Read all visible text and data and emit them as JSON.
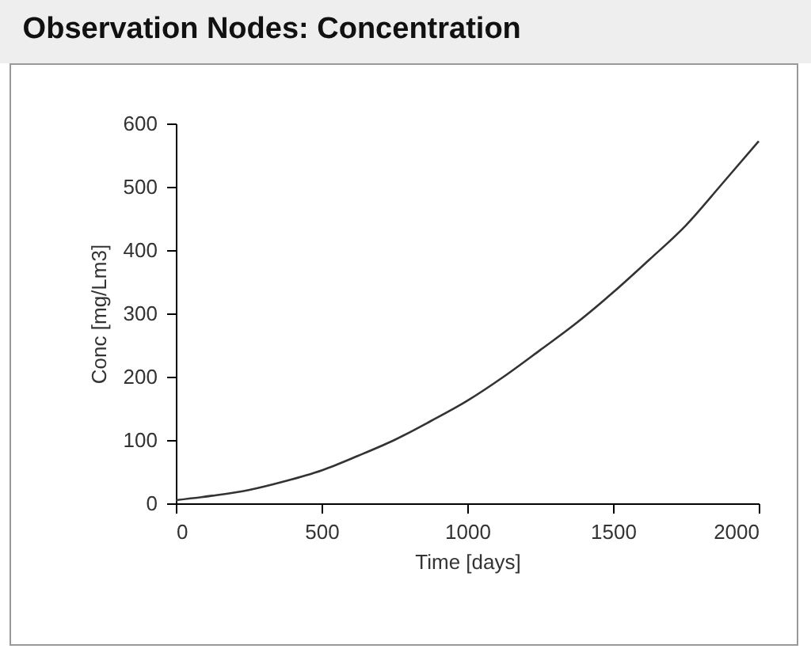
{
  "chart_data": {
    "type": "line",
    "title": "Observation Nodes: Concentration",
    "xlabel": "Time [days]",
    "ylabel": "Conc [mg/Lm3]",
    "x": [
      0,
      125,
      250,
      375,
      500,
      625,
      750,
      875,
      1000,
      1125,
      1250,
      1375,
      1500,
      1625,
      1750,
      1875,
      2000
    ],
    "series": [
      {
        "color": "#333333",
        "values": [
          5,
          12,
          21,
          35,
          52,
          75,
          100,
          130,
          162,
          200,
          242,
          285,
          333,
          385,
          439,
          505,
          572
        ]
      }
    ],
    "xlim": [
      0,
      2000
    ],
    "xticks": [
      0,
      500,
      1000,
      1500,
      2000
    ],
    "ylim": [
      0,
      600
    ],
    "yticks": [
      0,
      100,
      200,
      300,
      400,
      500,
      600
    ],
    "grid": false,
    "legend": false,
    "marker": "none",
    "line_style": "solid"
  }
}
